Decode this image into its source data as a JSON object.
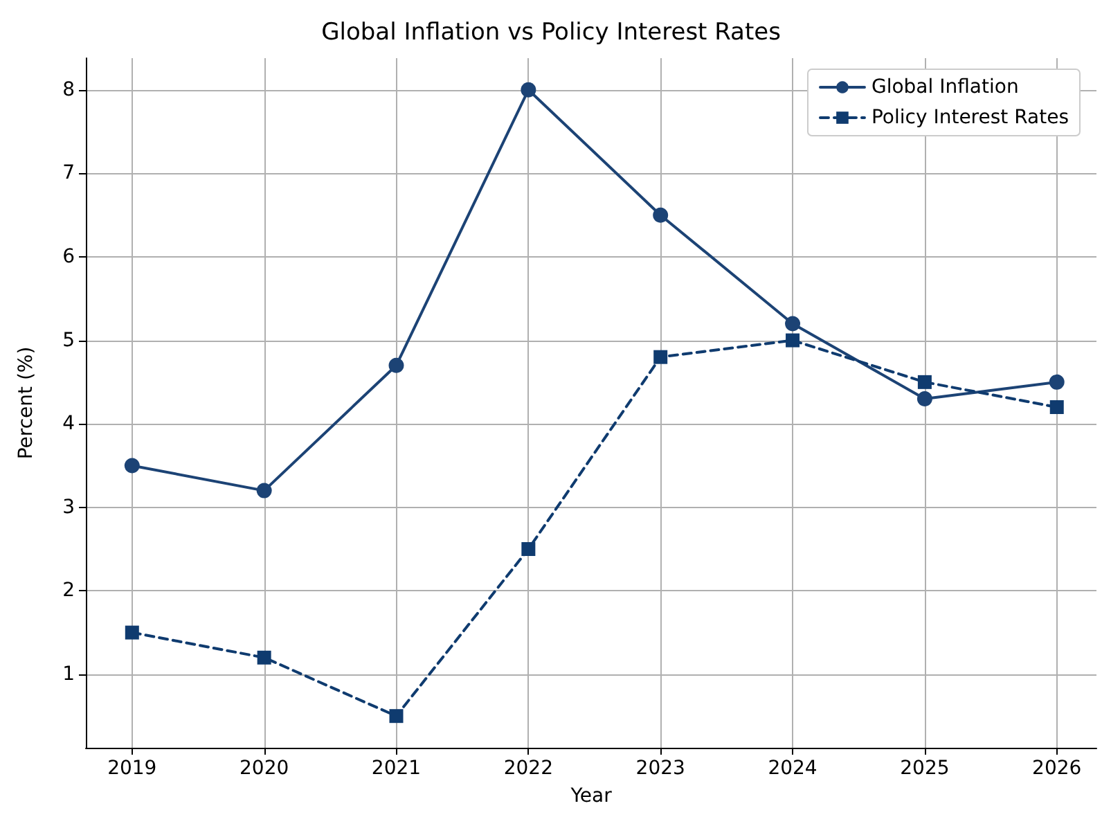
{
  "chart_data": {
    "type": "line",
    "title": "Global Inflation vs Policy Interest Rates",
    "xlabel": "Year",
    "ylabel": "Percent (%)",
    "x": [
      2019,
      2020,
      2021,
      2022,
      2023,
      2024,
      2025,
      2026
    ],
    "series": [
      {
        "name": "Global Inflation",
        "color": "#1c4375",
        "marker": "circle",
        "line_style": "solid",
        "values": [
          3.5,
          3.2,
          4.7,
          8.0,
          6.5,
          5.2,
          4.3,
          4.5
        ]
      },
      {
        "name": "Policy Interest Rates",
        "color": "#0f3b6f",
        "marker": "square",
        "line_style": "dashed",
        "values": [
          1.5,
          1.2,
          0.5,
          2.5,
          4.8,
          5.0,
          4.5,
          4.2
        ]
      }
    ],
    "xlim": [
      2018.65,
      2026.3
    ],
    "xticks": [
      2019,
      2020,
      2021,
      2022,
      2023,
      2024,
      2025,
      2026
    ],
    "ylim": [
      0.12,
      8.38
    ],
    "yticks": [
      1,
      2,
      3,
      4,
      5,
      6,
      7,
      8
    ],
    "grid": true,
    "legend": "top right"
  }
}
